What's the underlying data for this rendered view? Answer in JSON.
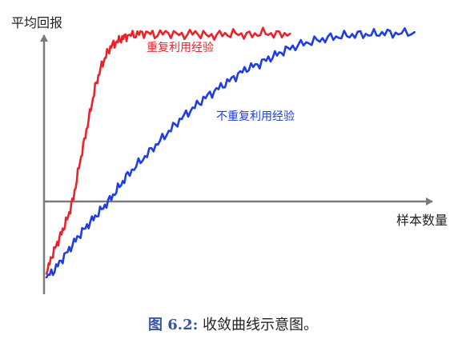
{
  "chart_data": {
    "type": "line",
    "xlabel": "样本数量",
    "ylabel": "平均回报",
    "grid": false,
    "ticks": false,
    "series": [
      {
        "name": "重复利用经验",
        "color": "#e8242a",
        "x": [
          0,
          2,
          4,
          6,
          8,
          10,
          12,
          14,
          16,
          18,
          20,
          22,
          24,
          26,
          28,
          30,
          33,
          36,
          40,
          45,
          50,
          55,
          60,
          65,
          70,
          75,
          80,
          85,
          90
        ],
        "y": [
          -0.95,
          -0.72,
          -0.55,
          -0.38,
          -0.2,
          0.05,
          0.45,
          0.8,
          1.15,
          1.5,
          1.75,
          1.92,
          2.05,
          2.1,
          2.15,
          2.18,
          2.2,
          2.22,
          2.2,
          2.22,
          2.19,
          2.22,
          2.18,
          2.2,
          2.21,
          2.19,
          2.22,
          2.2,
          2.21
        ]
      },
      {
        "name": "不重复利用经验",
        "color": "#1f3ee0",
        "x": [
          0,
          3,
          6,
          9,
          12,
          15,
          18,
          21,
          24,
          27,
          30,
          34,
          38,
          42,
          46,
          50,
          54,
          58,
          62,
          66,
          70,
          74,
          78,
          82,
          86,
          90,
          95,
          100,
          105,
          110,
          115,
          120,
          125,
          130,
          136
        ],
        "y": [
          -1.0,
          -0.9,
          -0.75,
          -0.6,
          -0.45,
          -0.32,
          -0.2,
          -0.08,
          0.05,
          0.2,
          0.35,
          0.5,
          0.65,
          0.8,
          0.95,
          1.1,
          1.22,
          1.35,
          1.45,
          1.55,
          1.65,
          1.75,
          1.8,
          1.88,
          1.95,
          2.02,
          2.08,
          2.12,
          2.16,
          2.18,
          2.2,
          2.2,
          2.22,
          2.21,
          2.23
        ]
      }
    ]
  },
  "caption": {
    "label": "图 6.2:",
    "text": "收敛曲线示意图。"
  }
}
